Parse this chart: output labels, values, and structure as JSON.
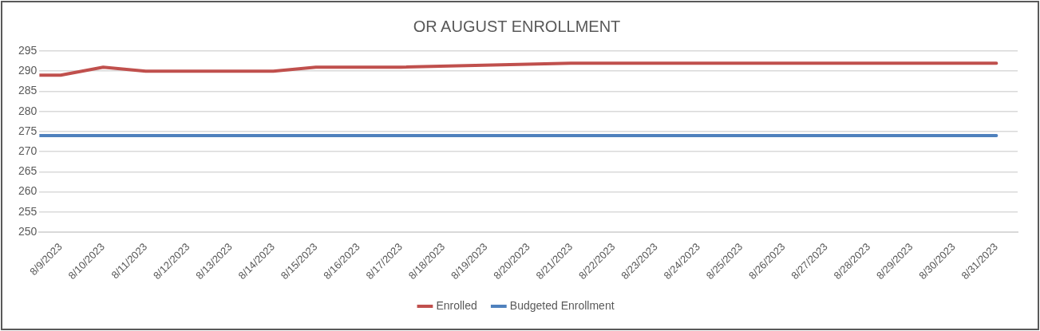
{
  "chart_data": {
    "type": "line",
    "title": "OR AUGUST ENROLLMENT",
    "x": [
      "2023-08-08T12:00",
      "2023-08-09",
      "2023-08-10",
      "2023-08-11",
      "2023-08-14",
      "2023-08-15",
      "2023-08-17",
      "2023-08-21",
      "2023-08-31"
    ],
    "series": [
      {
        "name": "Enrolled",
        "color": "#c0504d",
        "values": [
          289,
          289,
          291,
          290,
          290,
          291,
          291,
          292,
          292
        ]
      },
      {
        "name": "Budgeted Enrollment",
        "color": "#4f81bd",
        "values": [
          274,
          274,
          274,
          274,
          274,
          274,
          274,
          274,
          274
        ]
      }
    ],
    "xlim": [
      "2023-08-08T12:00",
      "2023-08-31T12:00"
    ],
    "xticks": [
      {
        "value": "2023-08-09",
        "label": "8/9/2023"
      },
      {
        "value": "2023-08-10",
        "label": "8/10/2023"
      },
      {
        "value": "2023-08-11",
        "label": "8/11/2023"
      },
      {
        "value": "2023-08-12",
        "label": "8/12/2023"
      },
      {
        "value": "2023-08-13",
        "label": "8/13/2023"
      },
      {
        "value": "2023-08-14",
        "label": "8/14/2023"
      },
      {
        "value": "2023-08-15",
        "label": "8/15/2023"
      },
      {
        "value": "2023-08-16",
        "label": "8/16/2023"
      },
      {
        "value": "2023-08-17",
        "label": "8/17/2023"
      },
      {
        "value": "2023-08-18",
        "label": "8/18/2023"
      },
      {
        "value": "2023-08-19",
        "label": "8/19/2023"
      },
      {
        "value": "2023-08-20",
        "label": "8/20/2023"
      },
      {
        "value": "2023-08-21",
        "label": "8/21/2023"
      },
      {
        "value": "2023-08-22",
        "label": "8/22/2023"
      },
      {
        "value": "2023-08-23",
        "label": "8/23/2023"
      },
      {
        "value": "2023-08-24",
        "label": "8/24/2023"
      },
      {
        "value": "2023-08-25",
        "label": "8/25/2023"
      },
      {
        "value": "2023-08-26",
        "label": "8/26/2023"
      },
      {
        "value": "2023-08-27",
        "label": "8/27/2023"
      },
      {
        "value": "2023-08-28",
        "label": "8/28/2023"
      },
      {
        "value": "2023-08-29",
        "label": "8/29/2023"
      },
      {
        "value": "2023-08-30",
        "label": "8/30/2023"
      },
      {
        "value": "2023-08-31",
        "label": "8/31/2023"
      }
    ],
    "ylim": [
      250,
      295
    ],
    "yticks": [
      250,
      255,
      260,
      265,
      270,
      275,
      280,
      285,
      290,
      295
    ],
    "grid": "y",
    "legend": "bottom",
    "marker": "none",
    "line_style": "solid"
  }
}
